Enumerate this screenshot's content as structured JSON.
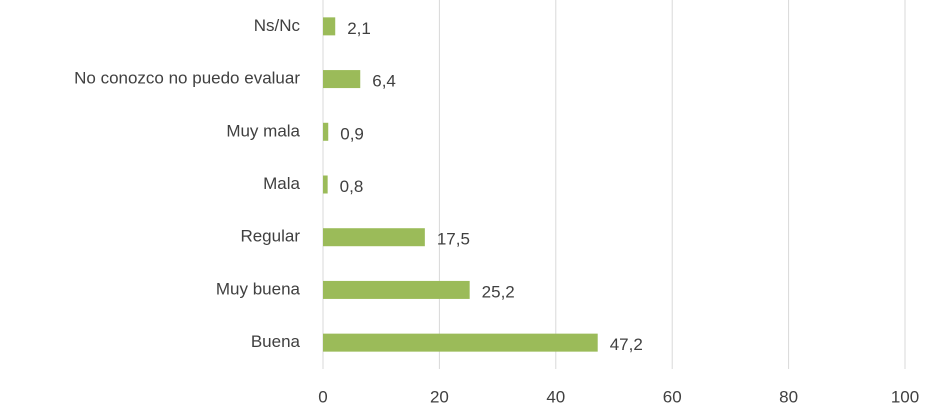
{
  "chart_data": {
    "type": "hbar",
    "categories": [
      "Ns/Nc",
      "No conozco no puedo evaluar",
      "Muy mala",
      "Mala",
      "Regular",
      "Muy buena",
      "Buena"
    ],
    "values": [
      2.1,
      6.4,
      0.9,
      0.8,
      17.5,
      25.2,
      47.2
    ],
    "value_labels": [
      "2,1",
      "6,4",
      "0,9",
      "0,8",
      "17,5",
      "25,2",
      "47,2"
    ],
    "color": "#9bbb59",
    "xlim": [
      0,
      100
    ],
    "xticks": [
      0,
      20,
      40,
      60,
      80,
      100
    ],
    "grid": true
  }
}
